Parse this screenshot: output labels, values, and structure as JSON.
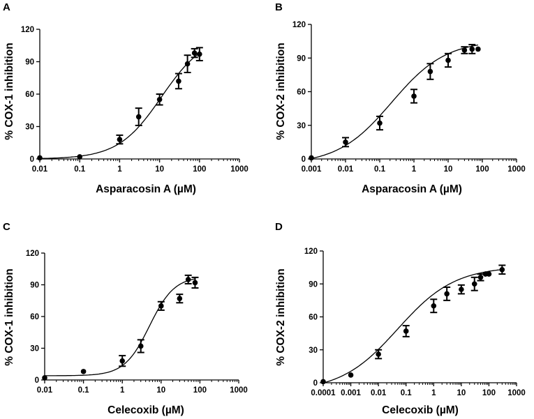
{
  "chart_data": [
    {
      "type": "scatter",
      "panel_letter": "A",
      "xlabel": "Asparacosin A (µM)",
      "ylabel": "% COX-1 inhibition",
      "xscale": "log",
      "xlim": [
        0.01,
        1000
      ],
      "ylim": [
        0,
        120
      ],
      "xticks": [
        "0.01",
        "0.1",
        "1",
        "10",
        "100",
        "1000"
      ],
      "yticks": [
        "0",
        "30",
        "60",
        "90",
        "120"
      ],
      "points": [
        {
          "x": 0.01,
          "y": 1,
          "err": 0
        },
        {
          "x": 0.1,
          "y": 2,
          "err": 0
        },
        {
          "x": 1,
          "y": 18,
          "err": 4
        },
        {
          "x": 3,
          "y": 39,
          "err": 8
        },
        {
          "x": 10,
          "y": 55,
          "err": 5
        },
        {
          "x": 30,
          "y": 72,
          "err": 7
        },
        {
          "x": 50,
          "y": 88,
          "err": 8
        },
        {
          "x": 75,
          "y": 98,
          "err": 4
        },
        {
          "x": 100,
          "y": 97,
          "err": 6
        }
      ],
      "fit": {
        "bottom": 0,
        "top": 115,
        "logEC50": 1.05,
        "hill": 0.8
      }
    },
    {
      "type": "scatter",
      "panel_letter": "B",
      "xlabel": "Asparacosin A (µM)",
      "ylabel": "% COX-2 inhibition",
      "xscale": "log",
      "xlim": [
        0.001,
        1000
      ],
      "ylim": [
        0,
        120
      ],
      "xticks": [
        "0.001",
        "0.01",
        "0.1",
        "1",
        "10",
        "100",
        "1000"
      ],
      "yticks": [
        "0",
        "30",
        "60",
        "90",
        "120"
      ],
      "points": [
        {
          "x": 0.001,
          "y": 1,
          "err": 0
        },
        {
          "x": 0.01,
          "y": 15,
          "err": 4
        },
        {
          "x": 0.1,
          "y": 32,
          "err": 6
        },
        {
          "x": 1,
          "y": 56,
          "err": 6
        },
        {
          "x": 3,
          "y": 78,
          "err": 7
        },
        {
          "x": 10,
          "y": 88,
          "err": 6
        },
        {
          "x": 30,
          "y": 97,
          "err": 3
        },
        {
          "x": 50,
          "y": 98,
          "err": 4
        },
        {
          "x": 75,
          "y": 98,
          "err": 0
        }
      ],
      "fit": {
        "bottom": -5,
        "top": 106,
        "logEC50": -0.65,
        "hill": 0.55
      }
    },
    {
      "type": "scatter",
      "panel_letter": "C",
      "xlabel": "Celecoxib (µM)",
      "ylabel": "% COX-1 inhibition",
      "xscale": "log",
      "xlim": [
        0.01,
        1000
      ],
      "ylim": [
        0,
        120
      ],
      "xticks": [
        "0.01",
        "0.1",
        "1",
        "10",
        "100",
        "1000"
      ],
      "yticks": [
        "0",
        "30",
        "60",
        "90",
        "120"
      ],
      "points": [
        {
          "x": 0.01,
          "y": 2,
          "err": 0
        },
        {
          "x": 0.1,
          "y": 8,
          "err": 0
        },
        {
          "x": 1,
          "y": 18,
          "err": 5
        },
        {
          "x": 3,
          "y": 32,
          "err": 6
        },
        {
          "x": 10,
          "y": 70,
          "err": 4
        },
        {
          "x": 30,
          "y": 77,
          "err": 4
        },
        {
          "x": 50,
          "y": 95,
          "err": 4
        },
        {
          "x": 75,
          "y": 92,
          "err": 5
        }
      ],
      "fit": {
        "bottom": 4,
        "top": 98,
        "logEC50": 0.7,
        "hill": 1.35
      }
    },
    {
      "type": "scatter",
      "panel_letter": "D",
      "xlabel": "Celecoxib (µM)",
      "ylabel": "% COX-2 inhibition",
      "xscale": "log",
      "xlim": [
        0.0001,
        1000
      ],
      "ylim": [
        0,
        120
      ],
      "xticks": [
        "0.0001",
        "0.001",
        "0.01",
        "0.1",
        "1",
        "10",
        "100",
        "1000"
      ],
      "yticks": [
        "0",
        "30",
        "60",
        "90",
        "120"
      ],
      "points": [
        {
          "x": 0.0001,
          "y": 1,
          "err": 0
        },
        {
          "x": 0.001,
          "y": 7,
          "err": 0
        },
        {
          "x": 0.01,
          "y": 26,
          "err": 4
        },
        {
          "x": 0.1,
          "y": 47,
          "err": 5
        },
        {
          "x": 1,
          "y": 70,
          "err": 6
        },
        {
          "x": 3,
          "y": 81,
          "err": 6
        },
        {
          "x": 10,
          "y": 85,
          "err": 4
        },
        {
          "x": 30,
          "y": 90,
          "err": 6
        },
        {
          "x": 50,
          "y": 96,
          "err": 3
        },
        {
          "x": 75,
          "y": 99,
          "err": 0
        },
        {
          "x": 100,
          "y": 99,
          "err": 0
        },
        {
          "x": 300,
          "y": 103,
          "err": 4
        }
      ],
      "fit": {
        "bottom": -8,
        "top": 106,
        "logEC50": -1.3,
        "hill": 0.42
      }
    }
  ]
}
